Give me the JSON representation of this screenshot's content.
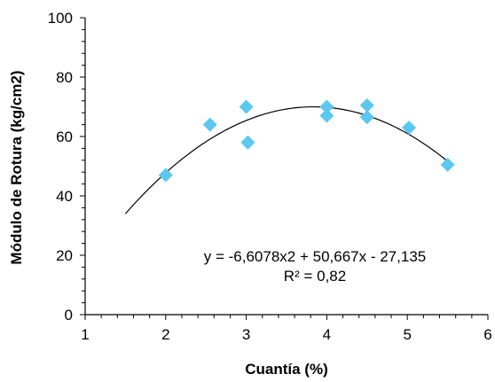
{
  "chart_data": {
    "type": "scatter",
    "xlabel": "Cuantía (%)",
    "ylabel": "Módulo de Rotura (kg/cm2)",
    "xlim": [
      1,
      6
    ],
    "ylim": [
      0,
      100
    ],
    "x_ticks": [
      "1",
      "2",
      "3",
      "4",
      "5",
      "6"
    ],
    "y_ticks": [
      "0",
      "20",
      "40",
      "60",
      "80",
      "100"
    ],
    "grid": false,
    "marker_color": "#5bc8f0",
    "curve_color": "#000000",
    "series": [
      {
        "points": [
          {
            "x": 2.0,
            "y": 47
          },
          {
            "x": 2.55,
            "y": 64
          },
          {
            "x": 3.0,
            "y": 70
          },
          {
            "x": 3.02,
            "y": 58
          },
          {
            "x": 4.0,
            "y": 70
          },
          {
            "x": 4.0,
            "y": 67
          },
          {
            "x": 4.5,
            "y": 70.5
          },
          {
            "x": 4.5,
            "y": 66.5
          },
          {
            "x": 5.02,
            "y": 63
          },
          {
            "x": 5.5,
            "y": 50.5
          }
        ]
      }
    ],
    "trendline": {
      "type": "polynomial",
      "coefficients": [
        -6.6078,
        50.667,
        -27.135
      ],
      "x_range": [
        1.5,
        5.5
      ]
    },
    "annotations": {
      "equation": "y = -6,6078x2 + 50,667x - 27,135",
      "r2": "R² = 0,82"
    }
  }
}
